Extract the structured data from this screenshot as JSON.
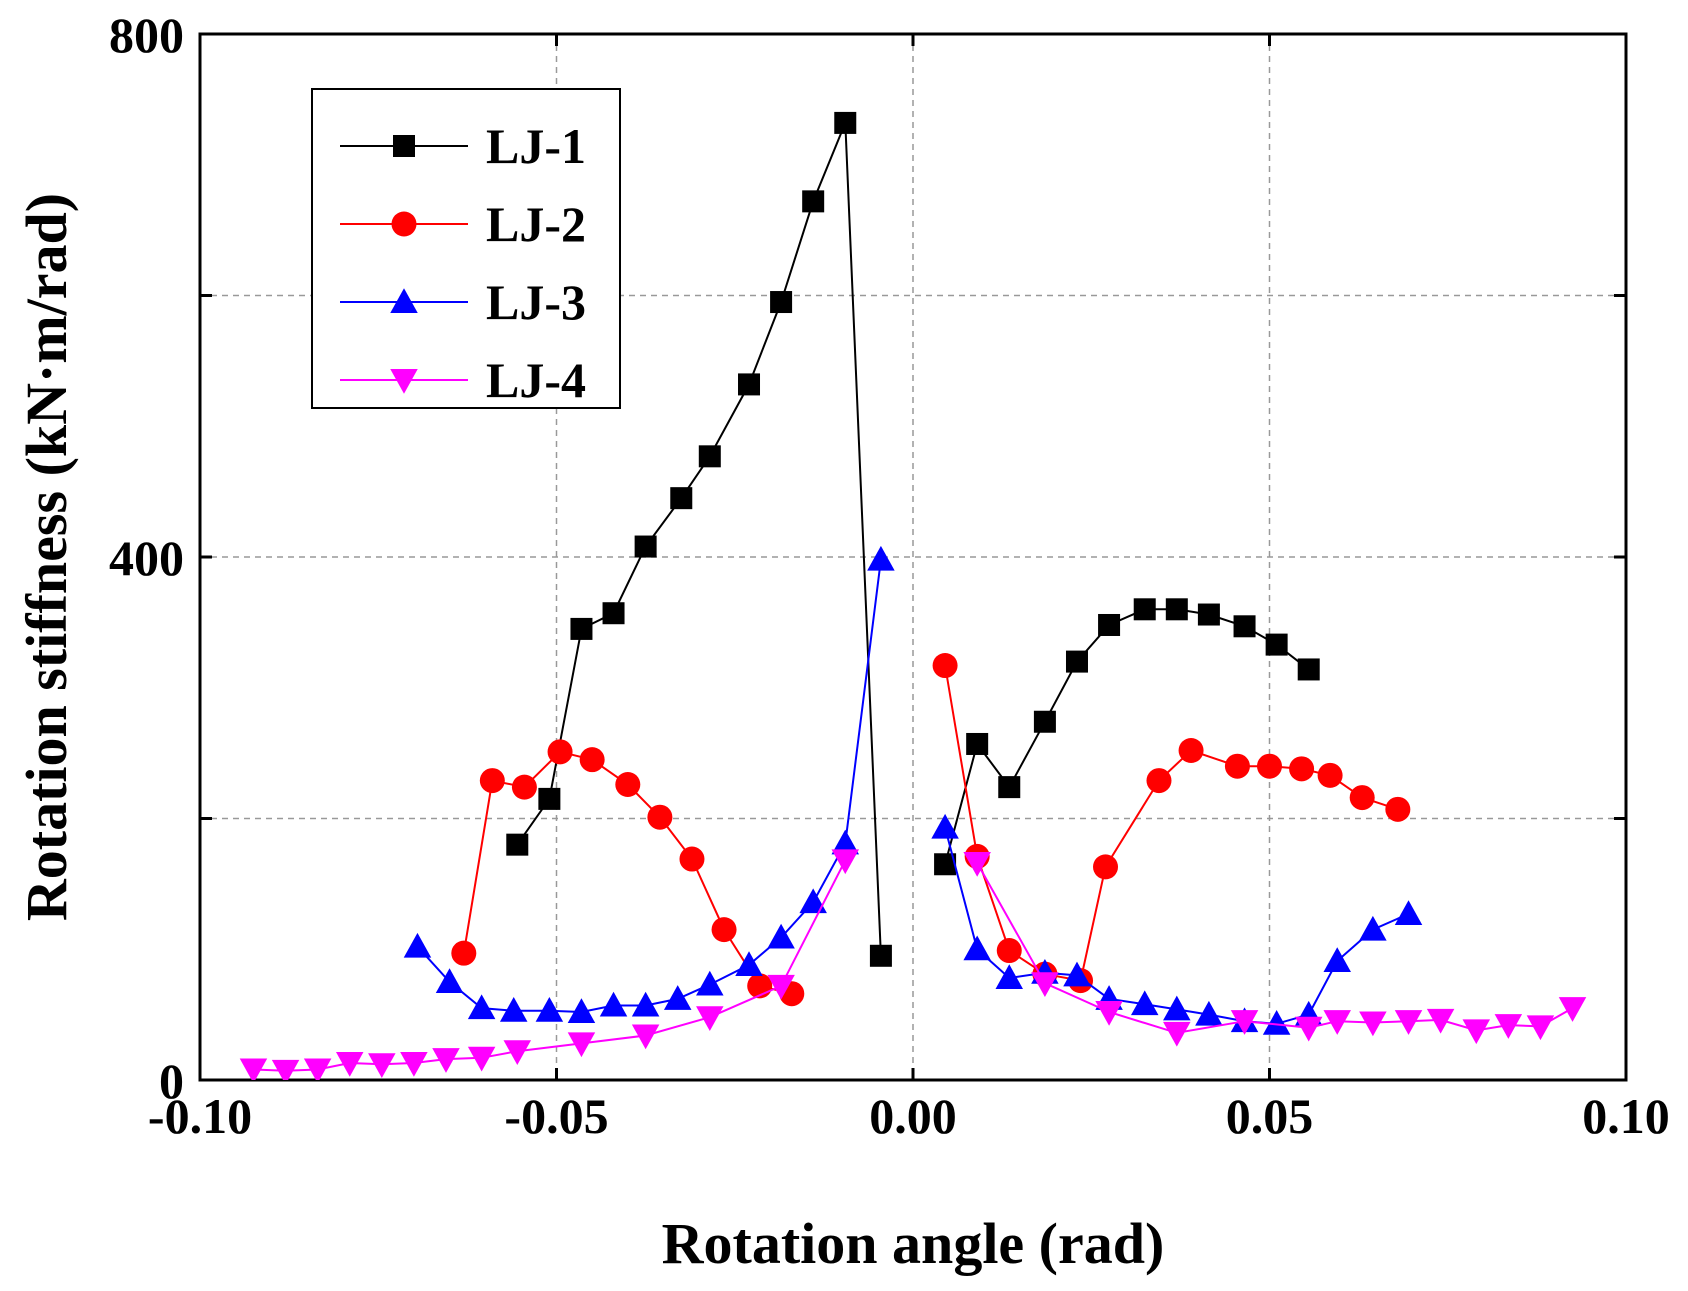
{
  "chart_data": {
    "type": "scatter",
    "title": "",
    "xlabel": "Rotation angle  (rad)",
    "ylabel": "Rotation stiffness  (kN·m/rad)",
    "xlim": [
      -0.1,
      0.1
    ],
    "ylim": [
      0,
      800
    ],
    "x_ticks": [
      -0.1,
      -0.05,
      0.0,
      0.05,
      0.1
    ],
    "x_tick_labels": [
      "-0.10",
      "-0.05",
      "0.00",
      "0.05",
      "0.10"
    ],
    "y_ticks": [
      0,
      400,
      800
    ],
    "y_tick_labels": [
      "0",
      "400",
      "800"
    ],
    "y_gridlines": [
      0,
      200,
      400,
      600,
      800
    ],
    "grid": true,
    "legend_position": "top-left",
    "series": [
      {
        "name": "LJ-1",
        "color": "#000000",
        "marker": "square",
        "segments": [
          [
            [
              -0.0555,
              180
            ],
            [
              -0.051,
              215
            ],
            [
              -0.0465,
              345
            ],
            [
              -0.042,
              357
            ],
            [
              -0.0375,
              408
            ],
            [
              -0.0325,
              445
            ],
            [
              -0.0285,
              477
            ],
            [
              -0.023,
              532
            ],
            [
              -0.0185,
              595
            ],
            [
              -0.014,
              672
            ],
            [
              -0.0095,
              732
            ],
            [
              -0.0045,
              95
            ]
          ],
          [
            [
              0.0045,
              165
            ],
            [
              0.009,
              257
            ],
            [
              0.0135,
              224
            ],
            [
              0.0185,
              274
            ],
            [
              0.023,
              320
            ],
            [
              0.0275,
              348
            ],
            [
              0.0325,
              360
            ],
            [
              0.037,
              360
            ],
            [
              0.0415,
              356
            ],
            [
              0.0465,
              347
            ],
            [
              0.051,
              333
            ],
            [
              0.0555,
              314
            ]
          ]
        ]
      },
      {
        "name": "LJ-2",
        "color": "#ff0000",
        "marker": "circle",
        "segments": [
          [
            [
              -0.063,
              97
            ],
            [
              -0.059,
              229
            ],
            [
              -0.0545,
              224
            ],
            [
              -0.0495,
              251
            ],
            [
              -0.045,
              245
            ],
            [
              -0.04,
              226
            ],
            [
              -0.0355,
              201
            ],
            [
              -0.031,
              169
            ],
            [
              -0.0265,
              115
            ],
            [
              -0.0215,
              72
            ],
            [
              -0.017,
              66
            ]
          ],
          [
            [
              0.0045,
              317
            ],
            [
              0.009,
              171
            ],
            [
              0.0135,
              99
            ],
            [
              0.0185,
              81
            ],
            [
              0.0235,
              76
            ],
            [
              0.027,
              163
            ],
            [
              0.0345,
              229
            ],
            [
              0.039,
              252
            ],
            [
              0.0455,
              240
            ],
            [
              0.05,
              240
            ],
            [
              0.0545,
              238
            ],
            [
              0.0585,
              233
            ],
            [
              0.063,
              216
            ],
            [
              0.068,
              207
            ]
          ]
        ]
      },
      {
        "name": "LJ-3",
        "color": "#0000ff",
        "marker": "triangle-up",
        "segments": [
          [
            [
              -0.0695,
              102
            ],
            [
              -0.065,
              75
            ],
            [
              -0.0605,
              55
            ],
            [
              -0.056,
              53
            ],
            [
              -0.051,
              53
            ],
            [
              -0.0465,
              52
            ],
            [
              -0.042,
              57
            ],
            [
              -0.0375,
              57
            ],
            [
              -0.033,
              62
            ],
            [
              -0.0285,
              73
            ],
            [
              -0.023,
              88
            ],
            [
              -0.0185,
              109
            ],
            [
              -0.014,
              136
            ],
            [
              -0.0095,
              181
            ],
            [
              -0.0045,
              398
            ]
          ],
          [
            [
              0.0045,
              193
            ],
            [
              0.009,
              100
            ],
            [
              0.0135,
              78
            ],
            [
              0.0185,
              82
            ],
            [
              0.023,
              80
            ],
            [
              0.0275,
              62
            ],
            [
              0.0325,
              58
            ],
            [
              0.037,
              54
            ],
            [
              0.0415,
              50
            ],
            [
              0.0465,
              45
            ],
            [
              0.051,
              43
            ],
            [
              0.0555,
              50
            ],
            [
              0.0595,
              91
            ],
            [
              0.0645,
              115
            ],
            [
              0.0695,
              127
            ]
          ]
        ]
      },
      {
        "name": "LJ-4",
        "color": "#ff00ff",
        "marker": "triangle-down",
        "segments": [
          [
            [
              -0.0925,
              8
            ],
            [
              -0.088,
              7
            ],
            [
              -0.0835,
              8
            ],
            [
              -0.079,
              13
            ],
            [
              -0.0745,
              12
            ],
            [
              -0.07,
              13
            ],
            [
              -0.0655,
              16
            ],
            [
              -0.0605,
              17
            ],
            [
              -0.0555,
              22
            ],
            [
              -0.0465,
              28
            ],
            [
              -0.0375,
              34
            ],
            [
              -0.0285,
              48
            ],
            [
              -0.0185,
              72
            ],
            [
              -0.0095,
              168
            ]
          ],
          [
            [
              0.009,
              166
            ],
            [
              0.0185,
              74
            ],
            [
              0.0275,
              52
            ],
            [
              0.037,
              36
            ],
            [
              0.0465,
              45
            ],
            [
              0.0555,
              40
            ],
            [
              0.0595,
              45
            ],
            [
              0.0645,
              44
            ],
            [
              0.0695,
              45
            ],
            [
              0.074,
              46
            ],
            [
              0.079,
              38
            ],
            [
              0.0835,
              42
            ],
            [
              0.088,
              41
            ],
            [
              0.0925,
              55
            ]
          ]
        ]
      }
    ]
  }
}
